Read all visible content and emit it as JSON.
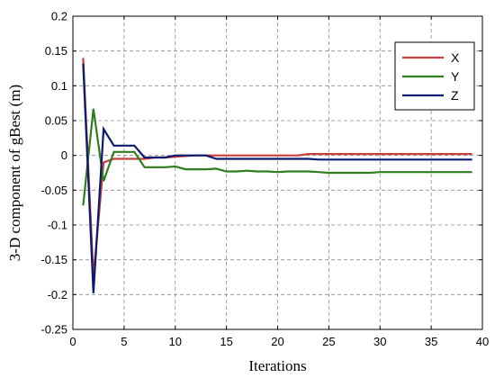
{
  "chart_data": {
    "type": "line",
    "title": "",
    "xlabel": "Iterations",
    "ylabel": "3-D  component of gBest (m)",
    "xlim": [
      0,
      40
    ],
    "ylim": [
      -0.25,
      0.2
    ],
    "xticks": [
      0,
      5,
      10,
      15,
      20,
      25,
      30,
      35,
      40
    ],
    "yticks": [
      0.2,
      0.15,
      0.1,
      0.05,
      0,
      -0.05,
      -0.1,
      -0.15,
      -0.2,
      -0.25
    ],
    "xtick_labels": [
      "0",
      "5",
      "10",
      "15",
      "20",
      "25",
      "30",
      "35",
      "40"
    ],
    "ytick_labels": [
      "0.2",
      "0.15",
      "0.1",
      "0.05",
      "0",
      "-0.05",
      "-0.1",
      "-0.15",
      "-0.2",
      "-0.25"
    ],
    "grid": true,
    "grid_style": "dashed",
    "legend_position": "top-right",
    "x": [
      1,
      2,
      3,
      4,
      5,
      6,
      7,
      8,
      9,
      10,
      11,
      12,
      13,
      14,
      15,
      16,
      17,
      18,
      19,
      20,
      21,
      22,
      23,
      24,
      25,
      26,
      27,
      28,
      29,
      30,
      31,
      32,
      33,
      34,
      35,
      36,
      37,
      38,
      39
    ],
    "series": [
      {
        "name": "X",
        "color": "#c8403c",
        "values": [
          0.14,
          -0.175,
          -0.01,
          -0.005,
          -0.005,
          -0.005,
          -0.005,
          -0.003,
          -0.003,
          -0.002,
          -0.001,
          0,
          0,
          0,
          0,
          0,
          0,
          0,
          0,
          0,
          0,
          0,
          0.002,
          0.002,
          0.002,
          0.002,
          0.002,
          0.002,
          0.002,
          0.002,
          0.002,
          0.002,
          0.002,
          0.002,
          0.002,
          0.002,
          0.002,
          0.002,
          0.002
        ]
      },
      {
        "name": "Y",
        "color": "#2e7d1f",
        "values": [
          -0.072,
          0.067,
          -0.037,
          0.005,
          0.005,
          0.005,
          -0.017,
          -0.017,
          -0.017,
          -0.016,
          -0.02,
          -0.02,
          -0.02,
          -0.019,
          -0.023,
          -0.023,
          -0.022,
          -0.023,
          -0.023,
          -0.024,
          -0.023,
          -0.023,
          -0.023,
          -0.024,
          -0.025,
          -0.025,
          -0.025,
          -0.025,
          -0.025,
          -0.024,
          -0.024,
          -0.024,
          -0.024,
          -0.024,
          -0.024,
          -0.024,
          -0.024,
          -0.024,
          -0.024
        ]
      },
      {
        "name": "Z",
        "color": "#0a1a6e",
        "values": [
          0.132,
          -0.198,
          0.038,
          0.014,
          0.014,
          0.014,
          -0.003,
          -0.003,
          -0.003,
          0,
          0,
          0,
          0,
          -0.005,
          -0.005,
          -0.005,
          -0.005,
          -0.005,
          -0.005,
          -0.005,
          -0.005,
          -0.005,
          -0.005,
          -0.006,
          -0.006,
          -0.006,
          -0.006,
          -0.006,
          -0.006,
          -0.006,
          -0.006,
          -0.006,
          -0.006,
          -0.006,
          -0.006,
          -0.006,
          -0.006,
          -0.006,
          -0.006
        ]
      }
    ]
  }
}
